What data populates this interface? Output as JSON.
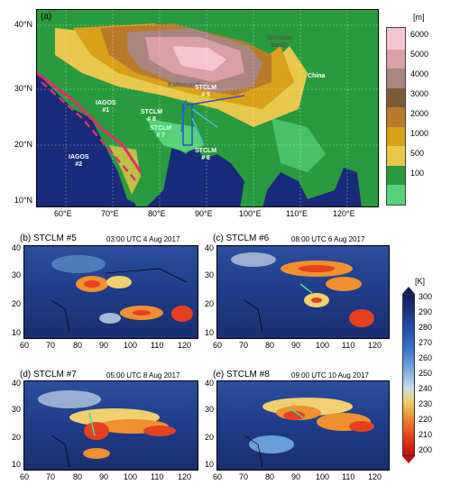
{
  "main_map": {
    "panel_label": "(a)",
    "unit": "[m]",
    "lat_labels": [
      "40°N",
      "30°N",
      "20°N",
      "10°N"
    ],
    "lon_labels": [
      "60°E",
      "70°E",
      "80°E",
      "90°E",
      "100°E",
      "110°E",
      "120°E"
    ],
    "colorbar_ticks": [
      "6000",
      "5000",
      "4000",
      "3000",
      "2000",
      "1000",
      "500",
      "100"
    ],
    "colorbar_colors": [
      "#f6c6cf",
      "#d9a0a6",
      "#a7867f",
      "#7a5c3a",
      "#b97a2a",
      "#d9a019",
      "#e7c84a",
      "#2a9a3e",
      "#55d27a"
    ],
    "annotations": {
      "kathmandu": "Kathmandu",
      "sichuan_1": "Sichuan",
      "sichuan_2": "basin",
      "china": "China",
      "iagos1_1": "IAGOS",
      "iagos1_2": "#1",
      "iagos2_1": "IAGOS",
      "iagos2_2": "#2",
      "stclm5_1": "STCLM",
      "stclm5_2": "# 5",
      "stclm8_1": "STCLM",
      "stclm8_2": "# 8",
      "stclm7_1": "STCLM",
      "stclm7_2": "# 7",
      "stclm6_1": "STCLM",
      "stclm6_2": "# 6"
    }
  },
  "panels": [
    {
      "label": "(b) STCLM #5",
      "time": "03:00 UTC  4 Aug 2017"
    },
    {
      "label": "(c) STCLM #6",
      "time": "08:00 UTC  6 Aug 2017"
    },
    {
      "label": "(d) STCLM #7",
      "time": "05:00 UTC  8 Aug 2017"
    },
    {
      "label": "(e) STCLM #8",
      "time": "09:00 UTC  10 Aug 2017"
    }
  ],
  "small_lat_labels": [
    "40",
    "30",
    "20",
    "10"
  ],
  "small_lon_labels": [
    "60",
    "70",
    "80",
    "90",
    "100",
    "110",
    "120"
  ],
  "temp_colorbar": {
    "unit": "[K]",
    "ticks": [
      "300",
      "290",
      "280",
      "270",
      "260",
      "250",
      "240",
      "230",
      "220",
      "210",
      "200"
    ],
    "colors": [
      "#12205e",
      "#1c3a8a",
      "#2856b0",
      "#3a78c8",
      "#6a9ed8",
      "#9cc2e4",
      "#c9dcec",
      "#f0d070",
      "#f09030",
      "#e64020",
      "#c01010"
    ]
  }
}
